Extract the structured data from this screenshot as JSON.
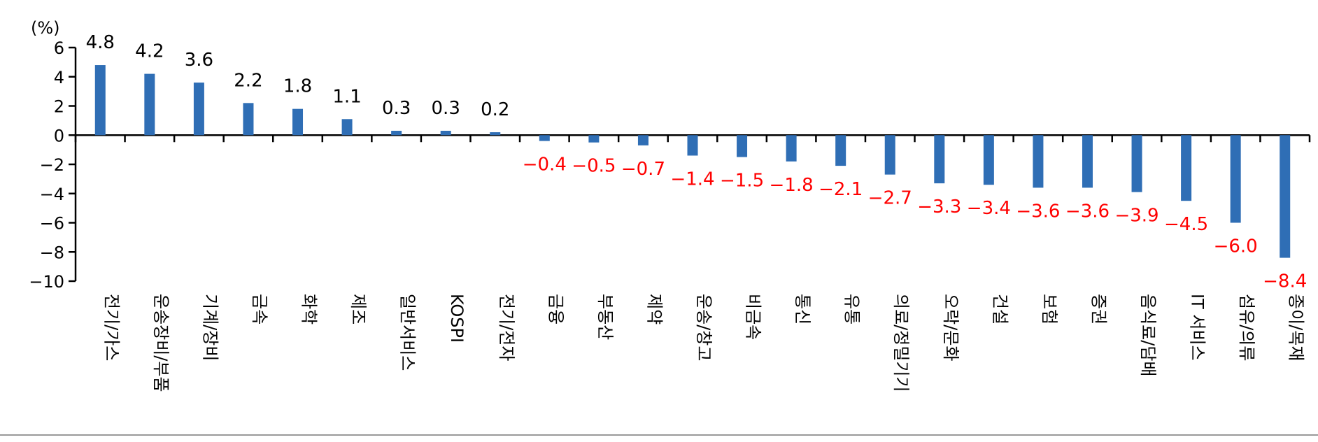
{
  "chart_data": {
    "type": "bar",
    "title": "",
    "xlabel": "",
    "ylabel": "",
    "unit_label": "(%)",
    "ylim": [
      -10,
      6
    ],
    "yticks": [
      6,
      4,
      2,
      0,
      -2,
      -4,
      -6,
      -8,
      -10
    ],
    "ytick_labels": [
      "6",
      "4",
      "2",
      "0",
      "−2",
      "−4",
      "−6",
      "−8",
      "−10"
    ],
    "categories": [
      "전기/가스",
      "운송장비/부품",
      "기계/장비",
      "금속",
      "화학",
      "제조",
      "일반서비스",
      "KOSPI",
      "전기/전자",
      "금융",
      "부동산",
      "제약",
      "운송/창고",
      "비금속",
      "통신",
      "유통",
      "의료/정밀기기",
      "오락/문화",
      "건설",
      "보험",
      "증권",
      "음식료/담배",
      "IT 서비스",
      "섬유/의류",
      "종이/목재"
    ],
    "values": [
      4.8,
      4.2,
      3.6,
      2.2,
      1.8,
      1.1,
      0.3,
      0.3,
      0.2,
      -0.4,
      -0.5,
      -0.7,
      -1.4,
      -1.5,
      -1.8,
      -2.1,
      -2.7,
      -3.3,
      -3.4,
      -3.6,
      -3.6,
      -3.9,
      -4.5,
      -6.0,
      -8.4
    ],
    "value_labels": [
      "4.8",
      "4.2",
      "3.6",
      "2.2",
      "1.8",
      "1.1",
      "0.3",
      "0.3",
      "0.2",
      "−0.4",
      "−0.5",
      "−0.7",
      "−1.4",
      "−1.5",
      "−1.8",
      "−2.1",
      "−2.7",
      "−3.3",
      "−3.4",
      "−3.6",
      "−3.6",
      "−3.9",
      "−4.5",
      "−6.0",
      "−8.4"
    ],
    "grid": false,
    "legend": "none"
  },
  "colors": {
    "bar": "#2f6eb5",
    "positive_label": "#000000",
    "negative_label": "#ff0000",
    "axis": "#000000",
    "bottom_rule": "#999999"
  }
}
